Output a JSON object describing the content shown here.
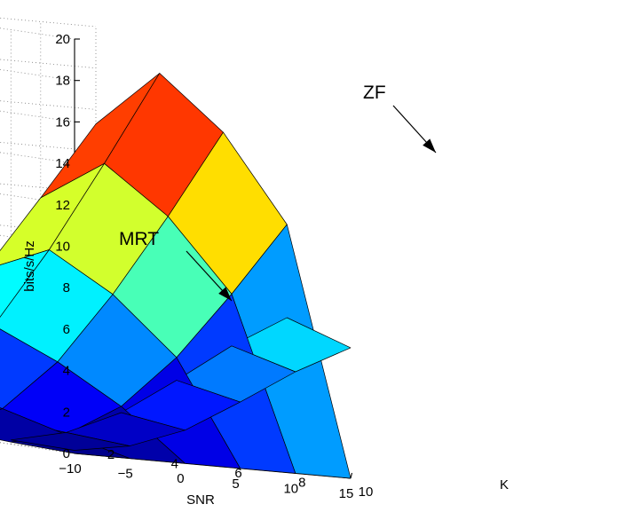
{
  "chart_data": {
    "type": "surface3d",
    "title": "",
    "xlabel": "SNR",
    "ylabel": "K",
    "zlabel": "bits/s/Hz",
    "xlim": [
      -10,
      15
    ],
    "ylim": [
      2,
      10
    ],
    "zlim": [
      0,
      20
    ],
    "x_ticks": [
      "−10",
      "−5",
      "0",
      "5",
      "10",
      "15"
    ],
    "y_ticks": [
      "10",
      "8",
      "6",
      "4",
      "2"
    ],
    "z_ticks": [
      "0",
      "2",
      "4",
      "6",
      "8",
      "10",
      "12",
      "14",
      "16",
      "18",
      "20"
    ],
    "grid": true,
    "colormap": "jet",
    "series": [
      {
        "name": "MRT",
        "snr": [
          -10,
          -5,
          0,
          5,
          10,
          15
        ],
        "k": [
          2,
          4,
          6,
          8,
          10
        ],
        "values": [
          [
            0.9,
            2.2,
            4.3,
            7.0,
            9.9,
            12.0
          ],
          [
            0.5,
            1.4,
            3.1,
            5.5,
            8.0,
            10.0
          ],
          [
            0.3,
            1.0,
            2.4,
            4.5,
            6.7,
            8.5
          ],
          [
            0.2,
            0.8,
            2.0,
            3.8,
            5.7,
            7.3
          ],
          [
            0.15,
            0.6,
            1.6,
            3.2,
            4.9,
            6.3
          ]
        ]
      },
      {
        "name": "ZF",
        "snr": [
          -10,
          -5,
          0,
          5,
          10,
          15
        ],
        "k": [
          2,
          4,
          6,
          8,
          10
        ],
        "values": [
          [
            0.6,
            2.1,
            4.5,
            7.8,
            11.5,
            15.3
          ],
          [
            0.5,
            2.3,
            5.3,
            9.2,
            13.6,
            18.2
          ],
          [
            0.3,
            1.5,
            4.0,
            7.5,
            11.5,
            15.8
          ],
          [
            0.1,
            0.7,
            2.3,
            4.9,
            8.2,
            11.8
          ],
          [
            0.0,
            0.0,
            0.0,
            0.0,
            0.0,
            0.0
          ]
        ]
      }
    ],
    "annotations": [
      {
        "text": "ZF",
        "target_series": "ZF"
      },
      {
        "text": "MRT",
        "target_series": "MRT"
      }
    ]
  }
}
